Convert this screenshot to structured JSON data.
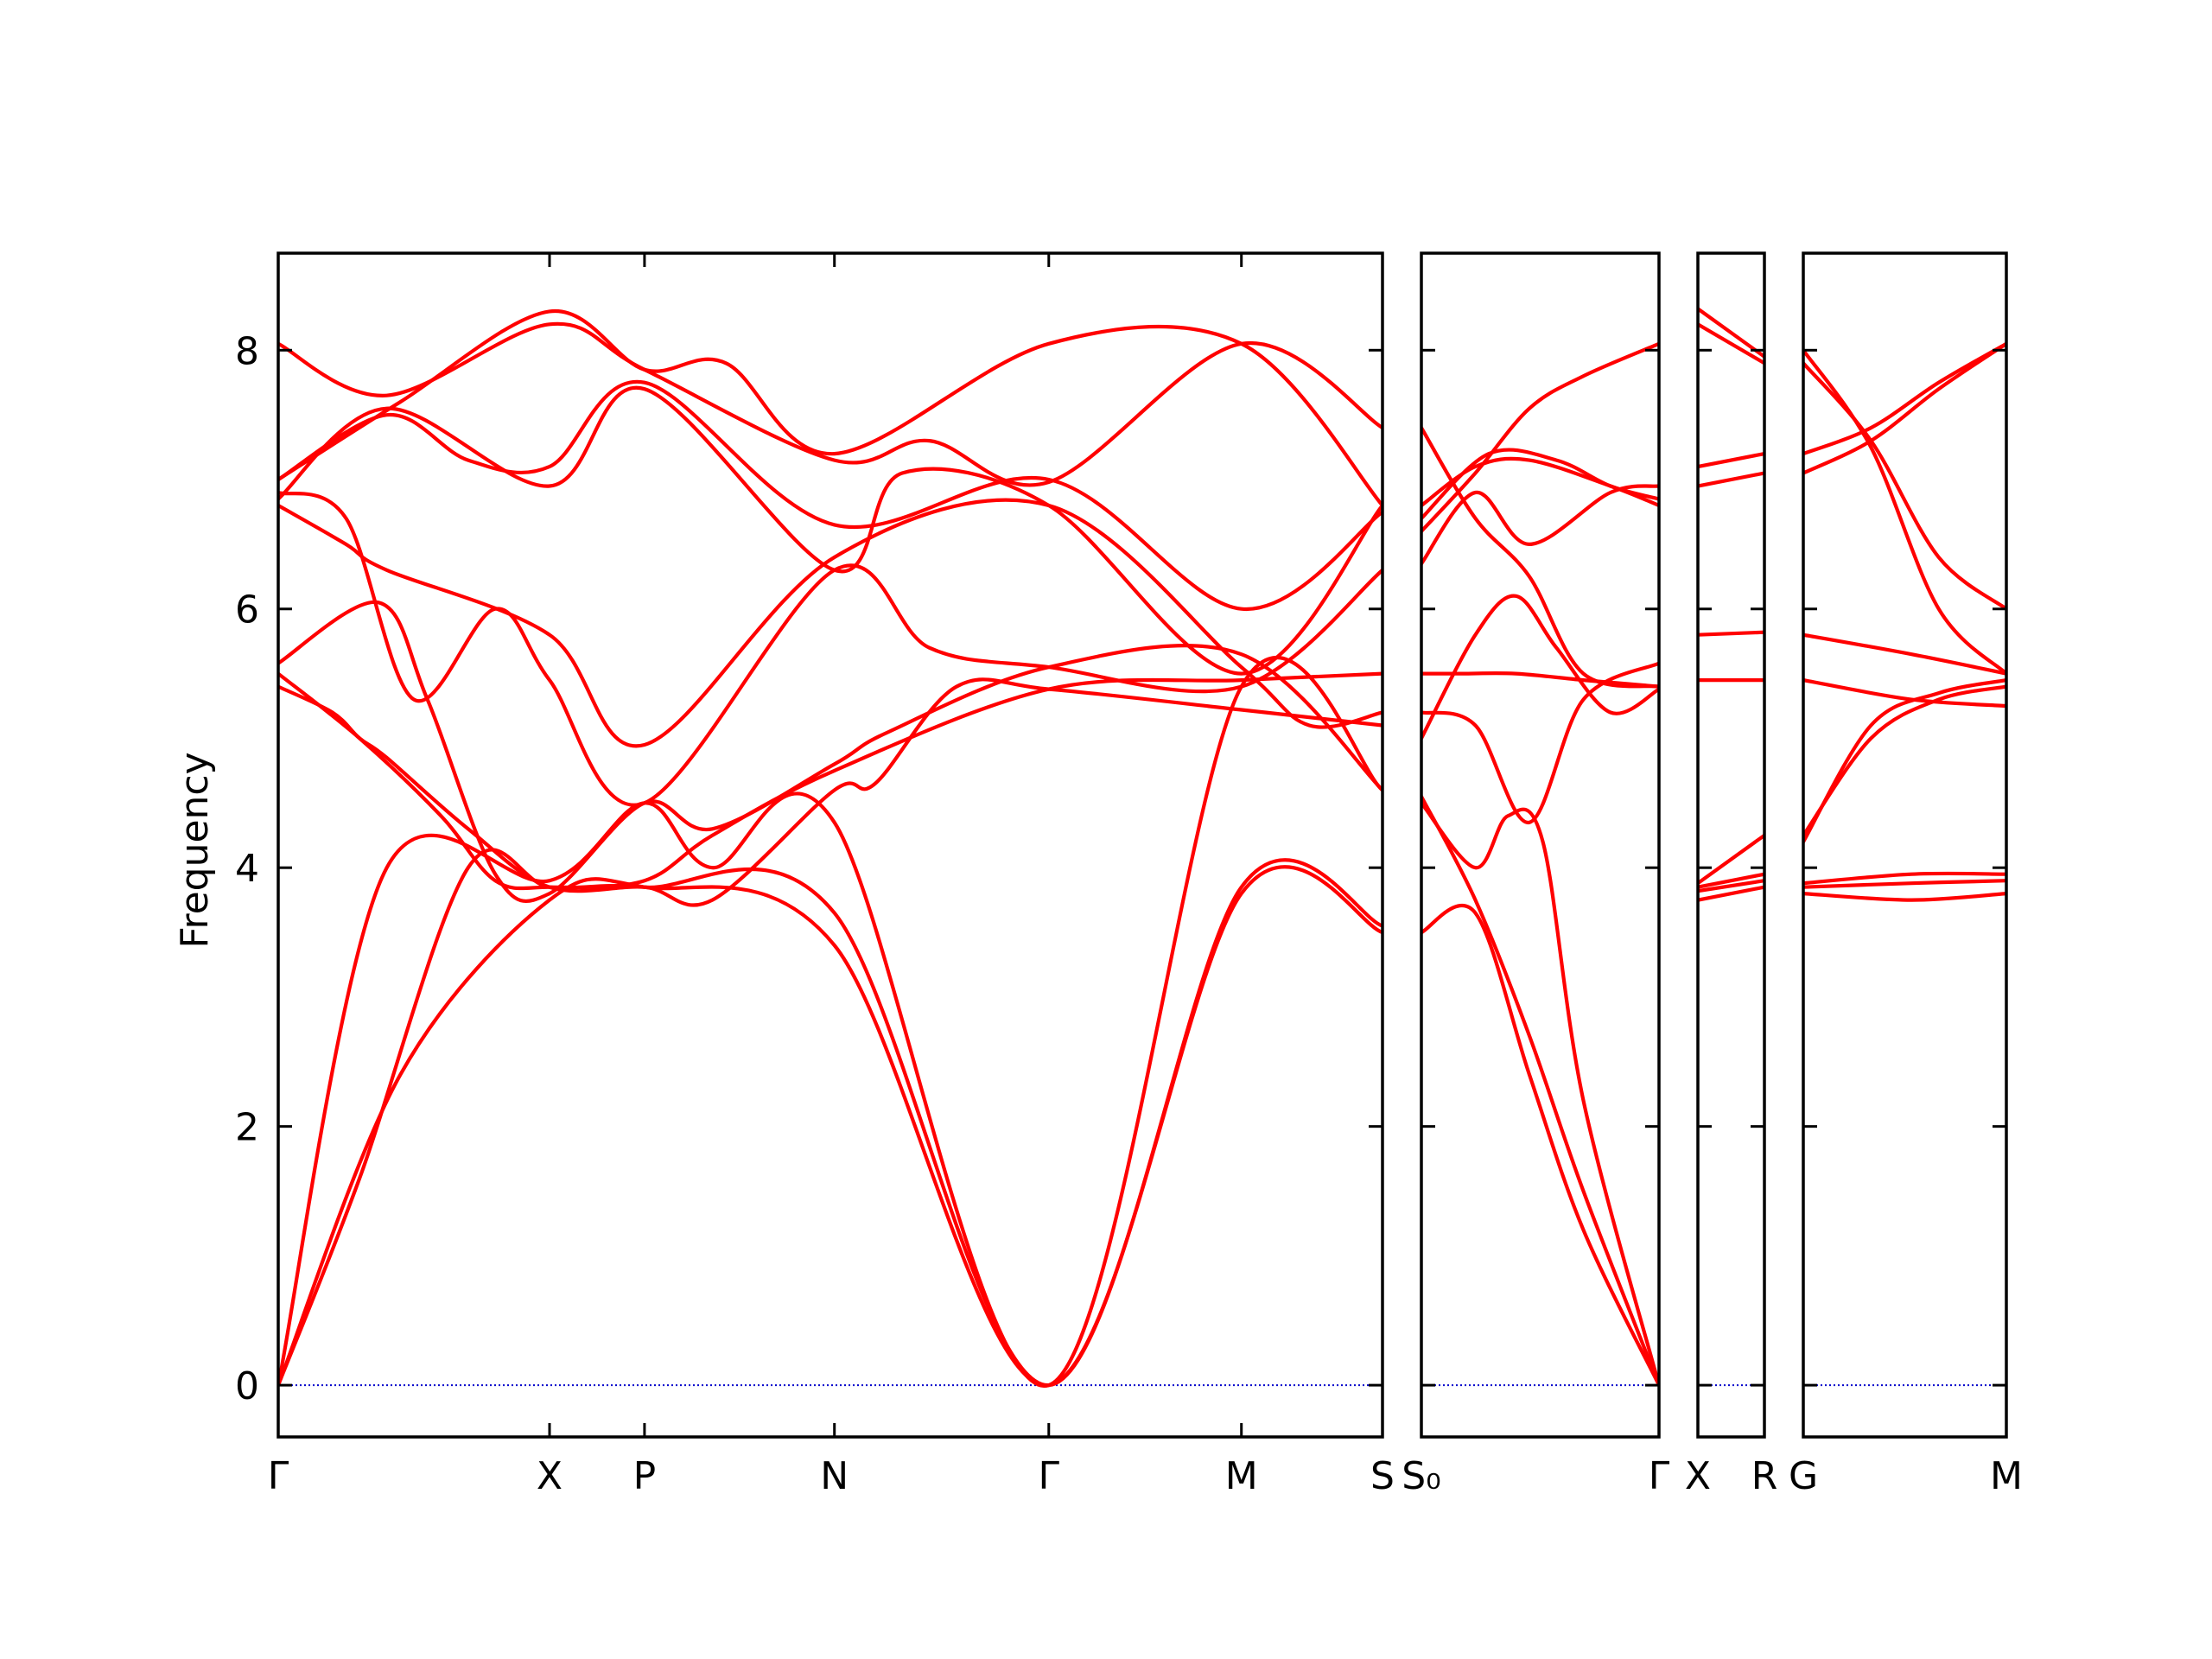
{
  "chart_data": {
    "type": "line",
    "title": "",
    "ylabel": "Frequency",
    "ylim": [
      -0.4,
      8.75
    ],
    "yticks": [
      0,
      2,
      4,
      6,
      8
    ],
    "grid": false,
    "legend": "none",
    "colors": {
      "bands": "#ff0000",
      "zero_line": "#0000cc",
      "axes": "#000000"
    },
    "segments": [
      {
        "id": "seg1",
        "ticks": [
          {
            "x": 0.0,
            "label": "Γ"
          },
          {
            "x": 1.0,
            "label": "X"
          },
          {
            "x": 1.35,
            "label": "P"
          },
          {
            "x": 2.05,
            "label": "N"
          },
          {
            "x": 2.84,
            "label": "Γ"
          },
          {
            "x": 3.55,
            "label": "M"
          },
          {
            "x": 4.07,
            "label": "S"
          }
        ],
        "xlim": [
          0,
          4.07
        ],
        "bands": [
          {
            "x": [
              0,
              0.45,
              1.0,
              1.35,
              2.05,
              2.84,
              3.55,
              4.07
            ],
            "y": [
              0,
              2.4,
              3.75,
              3.85,
              3.4,
              0,
              3.8,
              3.5
            ]
          },
          {
            "x": [
              0,
              0.3,
              0.7,
              1.0,
              1.35,
              2.05,
              2.84,
              3.55,
              4.07
            ],
            "y": [
              0,
              1.6,
              4.0,
              3.85,
              3.85,
              3.65,
              0,
              3.85,
              3.55
            ]
          },
          {
            "x": [
              0,
              0.4,
              1.0,
              1.35,
              1.6,
              2.05,
              2.84,
              3.55,
              4.07
            ],
            "y": [
              0,
              4.0,
              3.9,
              4.5,
              4.0,
              4.35,
              0,
              5.4,
              4.6
            ]
          },
          {
            "x": [
              0,
              0.2,
              0.3,
              0.4,
              0.7,
              1.0,
              1.35,
              1.6,
              2.05,
              2.2,
              2.5,
              2.84,
              3.55,
              4.07
            ],
            "y": [
              5.4,
              5.2,
              5.0,
              4.85,
              4.3,
              3.85,
              3.85,
              3.75,
              4.6,
              4.65,
              5.4,
              5.38,
              5.22,
              5.1
            ]
          },
          {
            "x": [
              0,
              0.3,
              0.6,
              0.8,
              1.0,
              1.35,
              1.6,
              2.05,
              2.84,
              3.55,
              4.07
            ],
            "y": [
              5.5,
              5.0,
              4.4,
              3.9,
              3.85,
              3.9,
              4.25,
              4.75,
              5.38,
              5.45,
              5.5
            ]
          },
          {
            "x": [
              0,
              0.37,
              0.55,
              0.8,
              1.0,
              1.35,
              1.6,
              2.05,
              2.25,
              2.84,
              3.55,
              4.07
            ],
            "y": [
              5.58,
              6.05,
              5.3,
              3.95,
              3.8,
              4.5,
              4.3,
              4.8,
              5.05,
              5.55,
              5.65,
              4.6
            ]
          },
          {
            "x": [
              0,
              0.25,
              0.4,
              1.0,
              1.35,
              2.05,
              2.84,
              3.55,
              3.8,
              4.07
            ],
            "y": [
              6.8,
              6.5,
              6.3,
              5.8,
              4.95,
              6.4,
              6.8,
              5.55,
              5.1,
              5.2
            ]
          },
          {
            "x": [
              0,
              0.25,
              0.5,
              0.8,
              1.0,
              1.35,
              2.05,
              2.4,
              2.84,
              3.55,
              4.07
            ],
            "y": [
              6.9,
              6.7,
              5.3,
              6.0,
              5.45,
              4.5,
              6.3,
              5.7,
              5.55,
              5.4,
              6.3
            ]
          },
          {
            "x": [
              0,
              0.4,
              0.7,
              1.0,
              1.35,
              2.05,
              2.84,
              3.55,
              4.07
            ],
            "y": [
              7.0,
              7.5,
              7.15,
              7.1,
              7.75,
              6.65,
              7.0,
              6.0,
              6.75
            ]
          },
          {
            "x": [
              0,
              0.4,
              1.0,
              1.35,
              2.05,
              2.3,
              2.84,
              3.55,
              4.07
            ],
            "y": [
              6.85,
              7.55,
              6.95,
              7.7,
              6.3,
              7.05,
              6.8,
              5.5,
              6.8
            ]
          },
          {
            "x": [
              0,
              0.4,
              1.0,
              1.35,
              2.05,
              2.4,
              2.84,
              3.55,
              4.07
            ],
            "y": [
              8.05,
              7.65,
              8.2,
              7.85,
              7.15,
              7.3,
              6.98,
              8.05,
              7.4
            ]
          },
          {
            "x": [
              0,
              0.45,
              1.0,
              1.35,
              1.65,
              2.05,
              2.84,
              3.55,
              4.07
            ],
            "y": [
              7.0,
              7.6,
              8.3,
              7.85,
              7.9,
              7.2,
              8.05,
              8.05,
              6.8
            ]
          }
        ]
      },
      {
        "id": "seg2",
        "ticks": [
          {
            "x": 0.0,
            "label": "S₀"
          },
          {
            "x": 0.88,
            "label": "Γ"
          }
        ],
        "xlim": [
          0,
          0.88
        ],
        "bands": [
          {
            "x": [
              0,
              0.2,
              0.4,
              0.6,
              0.88
            ],
            "y": [
              3.5,
              3.65,
              2.4,
              1.2,
              0
            ]
          },
          {
            "x": [
              0,
              0.2,
              0.4,
              0.6,
              0.88
            ],
            "y": [
              4.55,
              3.75,
              2.7,
              1.5,
              0
            ]
          },
          {
            "x": [
              0,
              0.2,
              0.32,
              0.45,
              0.6,
              0.88
            ],
            "y": [
              4.5,
              4.0,
              4.4,
              4.2,
              2.2,
              0
            ]
          },
          {
            "x": [
              0,
              0.2,
              0.35,
              0.5,
              0.7,
              0.88
            ],
            "y": [
              5.0,
              5.8,
              6.1,
              5.7,
              5.2,
              5.38
            ]
          },
          {
            "x": [
              0,
              0.15,
              0.35,
              0.6,
              0.88
            ],
            "y": [
              5.5,
              5.5,
              5.5,
              5.45,
              5.4
            ]
          },
          {
            "x": [
              0,
              0.2,
              0.4,
              0.6,
              0.88
            ],
            "y": [
              5.2,
              5.1,
              4.35,
              5.3,
              5.58
            ]
          },
          {
            "x": [
              0,
              0.2,
              0.4,
              0.7,
              0.88
            ],
            "y": [
              6.35,
              6.9,
              6.5,
              6.9,
              6.95
            ]
          },
          {
            "x": [
              0,
              0.2,
              0.4,
              0.7,
              0.88
            ],
            "y": [
              6.8,
              7.1,
              7.15,
              6.95,
              6.8
            ]
          },
          {
            "x": [
              0,
              0.25,
              0.5,
              0.7,
              0.88
            ],
            "y": [
              6.7,
              7.2,
              7.15,
              6.95,
              6.85
            ]
          },
          {
            "x": [
              0,
              0.2,
              0.4,
              0.6,
              0.88
            ],
            "y": [
              6.6,
              7.05,
              7.55,
              7.8,
              8.05
            ]
          },
          {
            "x": [
              0,
              0.2,
              0.4,
              0.6,
              0.88
            ],
            "y": [
              7.4,
              6.7,
              6.25,
              5.5,
              5.4
            ]
          }
        ]
      },
      {
        "id": "seg3",
        "ticks": [
          {
            "x": 0.0,
            "label": "X"
          },
          {
            "x": 0.25,
            "label": "R"
          }
        ],
        "xlim": [
          0,
          0.25
        ],
        "bands": [
          {
            "x": [
              0,
              0.25
            ],
            "y": [
              3.75,
              3.85
            ]
          },
          {
            "x": [
              0,
              0.25
            ],
            "y": [
              3.82,
              3.9
            ]
          },
          {
            "x": [
              0,
              0.25
            ],
            "y": [
              3.85,
              3.95
            ]
          },
          {
            "x": [
              0,
              0.25
            ],
            "y": [
              3.88,
              4.25
            ]
          },
          {
            "x": [
              0,
              0.25
            ],
            "y": [
              5.45,
              5.45
            ]
          },
          {
            "x": [
              0,
              0.25
            ],
            "y": [
              5.8,
              5.82
            ]
          },
          {
            "x": [
              0,
              0.25
            ],
            "y": [
              6.95,
              7.05
            ]
          },
          {
            "x": [
              0,
              0.25
            ],
            "y": [
              7.1,
              7.2
            ]
          },
          {
            "x": [
              0,
              0.25
            ],
            "y": [
              8.2,
              7.9
            ]
          },
          {
            "x": [
              0,
              0.25
            ],
            "y": [
              8.32,
              7.95
            ]
          }
        ]
      },
      {
        "id": "seg4",
        "ticks": [
          {
            "x": 0.0,
            "label": "G"
          },
          {
            "x": 0.75,
            "label": "M"
          }
        ],
        "xlim": [
          0,
          0.75
        ],
        "bands": [
          {
            "x": [
              0,
              0.4,
              0.75
            ],
            "y": [
              3.8,
              3.75,
              3.8
            ]
          },
          {
            "x": [
              0,
              0.4,
              0.75
            ],
            "y": [
              3.85,
              3.88,
              3.9
            ]
          },
          {
            "x": [
              0,
              0.4,
              0.75
            ],
            "y": [
              3.88,
              3.95,
              3.95
            ]
          },
          {
            "x": [
              0,
              0.25,
              0.5,
              0.75
            ],
            "y": [
              4.2,
              5.1,
              5.35,
              5.45
            ]
          },
          {
            "x": [
              0,
              0.25,
              0.5,
              0.75
            ],
            "y": [
              4.25,
              5.0,
              5.3,
              5.4
            ]
          },
          {
            "x": [
              0,
              0.4,
              0.75
            ],
            "y": [
              5.45,
              5.3,
              5.25
            ]
          },
          {
            "x": [
              0,
              0.4,
              0.75
            ],
            "y": [
              5.8,
              5.65,
              5.5
            ]
          },
          {
            "x": [
              0,
              0.25,
              0.5,
              0.75
            ],
            "y": [
              7.05,
              7.3,
              7.7,
              8.05
            ]
          },
          {
            "x": [
              0,
              0.25,
              0.5,
              0.75
            ],
            "y": [
              7.2,
              7.4,
              7.75,
              8.05
            ]
          },
          {
            "x": [
              0,
              0.25,
              0.5,
              0.75
            ],
            "y": [
              7.9,
              7.3,
              6.4,
              6.0
            ]
          },
          {
            "x": [
              0,
              0.25,
              0.5,
              0.75
            ],
            "y": [
              8.0,
              7.25,
              6.0,
              5.5
            ]
          }
        ]
      }
    ]
  }
}
